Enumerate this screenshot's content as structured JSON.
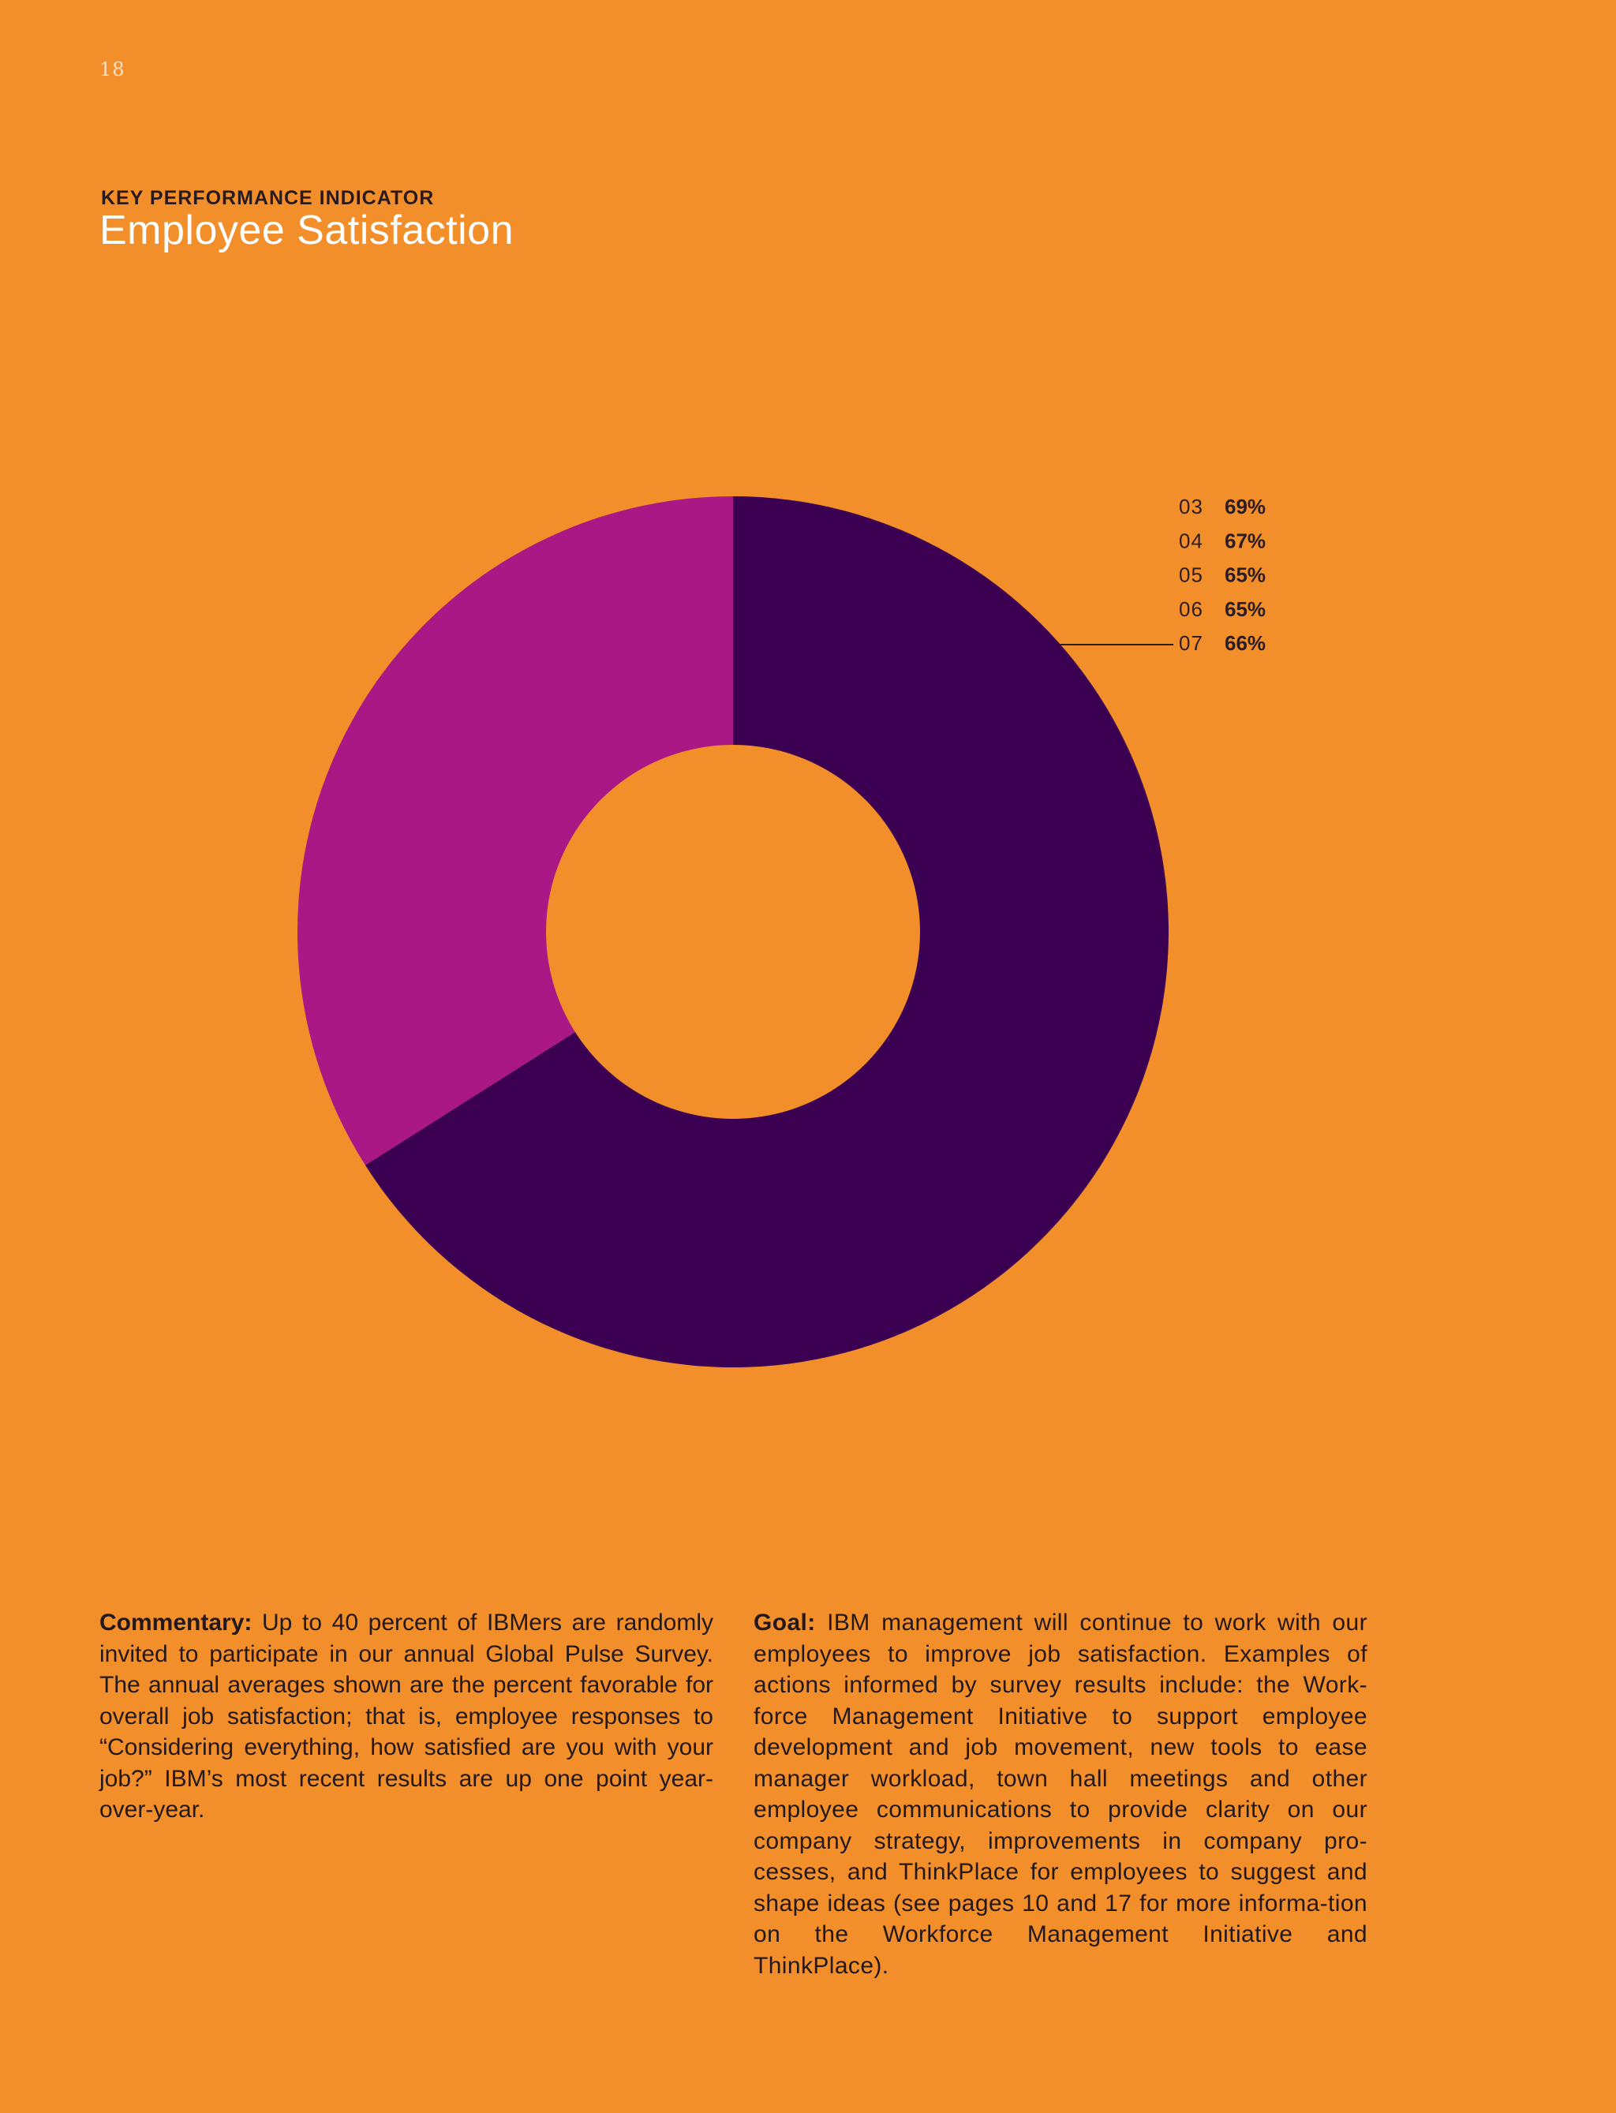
{
  "page": {
    "number": "18",
    "kicker": "KEY PERFORMANCE INDICATOR",
    "title": "Employee Satisfaction"
  },
  "colors": {
    "background": "#f28f2a",
    "series_current": "#3b0052",
    "series_remainder": "#a91885"
  },
  "chart_data": {
    "type": "pie",
    "subtype": "donut",
    "title": "",
    "legend_placement": "top-right",
    "entries": [
      {
        "label": "03",
        "value": "69%"
      },
      {
        "label": "04",
        "value": "67%"
      },
      {
        "label": "05",
        "value": "65%"
      },
      {
        "label": "06",
        "value": "65%"
      },
      {
        "label": "07",
        "value": "66%"
      }
    ],
    "slices": [
      {
        "value": 66,
        "color": "#3b0052"
      },
      {
        "value": 34,
        "color": "#a91885"
      }
    ],
    "callout_label": "07"
  },
  "commentary": {
    "label": "Commentary:",
    "text": " Up to 40 percent of IBMers are randomly invited to participate in our annual Global Pulse Survey. The annual averages shown are the percent favorable for overall job satisfaction; that is, employee responses to “Considering everything, how satisfied are you with your job?” IBM’s most recent results are up one point year-over-year."
  },
  "goal": {
    "label": "Goal:",
    "text": " IBM management will continue to work with our employees to improve job satisfaction. Examples of actions informed by survey results include: the Work-force Management Initiative to support employee development and job movement, new tools to ease manager workload, town hall meetings and other employee communications to provide clarity on our company strategy, improvements in company pro-cesses, and ThinkPlace for employees to suggest and shape ideas (see pages 10 and 17 for more informa-tion on the Workforce Management Initiative and ThinkPlace)."
  }
}
